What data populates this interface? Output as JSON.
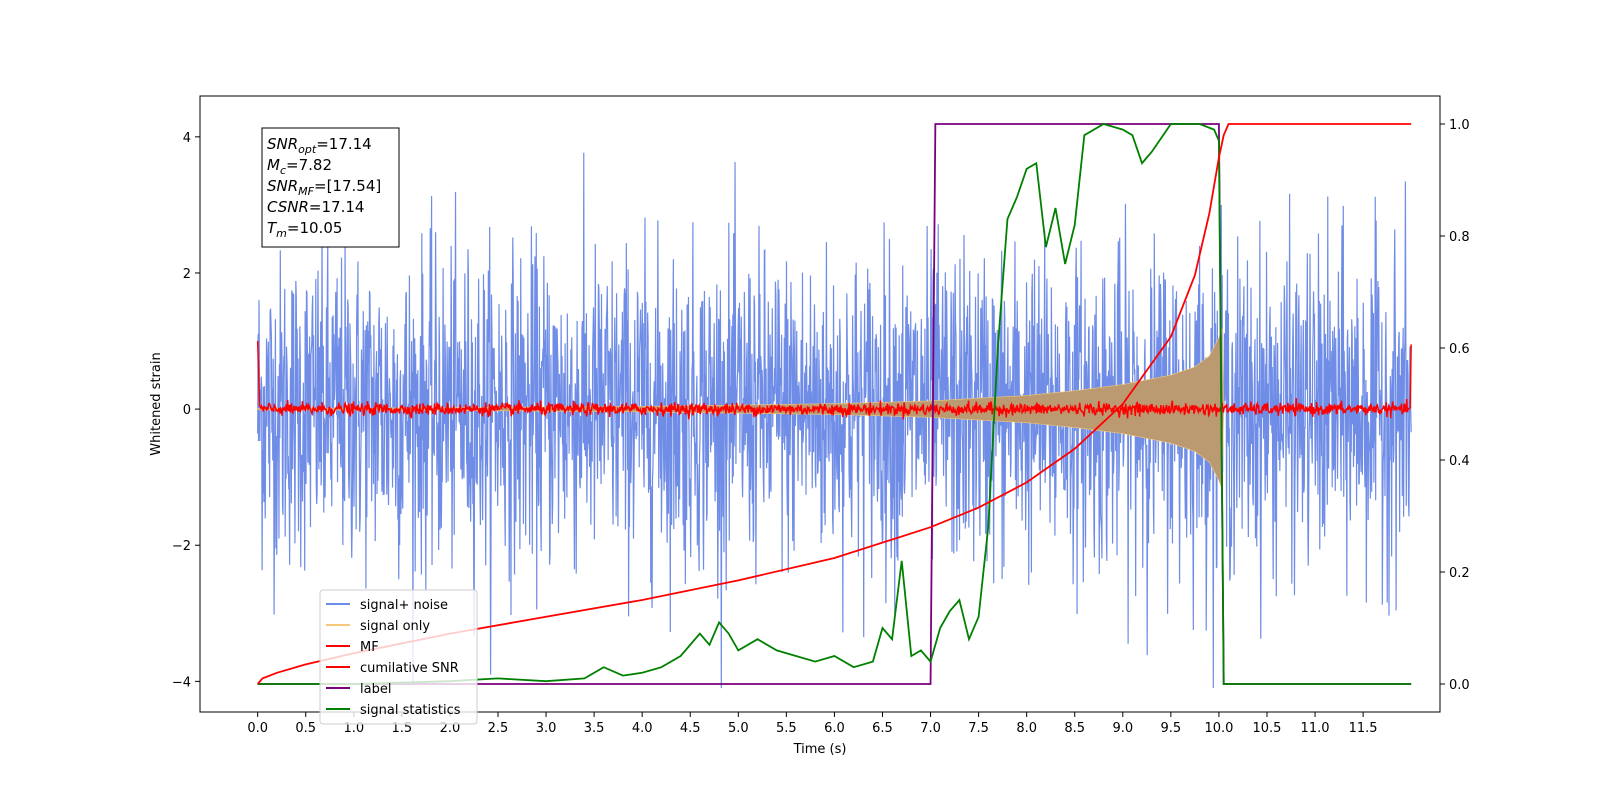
{
  "chart_data": {
    "type": "line",
    "xlabel": "Time (s)",
    "ylabel": "Whitened strain",
    "x_ticks": [
      "0.0",
      "0.5",
      "1.0",
      "1.5",
      "2.0",
      "2.5",
      "3.0",
      "3.5",
      "4.0",
      "4.5",
      "5.0",
      "5.5",
      "6.0",
      "6.5",
      "7.0",
      "7.5",
      "8.0",
      "8.5",
      "9.0",
      "9.5",
      "10.0",
      "10.5",
      "11.0",
      "11.5"
    ],
    "y_left_ticks": [
      "4",
      "2",
      "0",
      "−2",
      "−4"
    ],
    "y_right_ticks": [
      "1.0",
      "0.8",
      "0.6",
      "0.4",
      "0.2",
      "0.0"
    ],
    "xlim": [
      -0.6,
      12.3
    ],
    "ylim_left": [
      -4.45,
      4.6
    ],
    "ylim_right": [
      -0.05,
      1.05
    ],
    "grid": false,
    "legend_position": "lower-left",
    "annotation": {
      "lines": [
        {
          "base": "SNR",
          "sub": "opt",
          "value": "=17.14"
        },
        {
          "base": "M",
          "sub": "c",
          "value": "=7.82"
        },
        {
          "base": "SNR",
          "sub": "MF",
          "value": "=[17.54]"
        },
        {
          "base": "CSNR",
          "sub": "",
          "value": "=17.14"
        },
        {
          "base": "T",
          "sub": "m",
          "value": "=10.05"
        }
      ]
    },
    "series": [
      {
        "name": "signal+ noise",
        "color": "#6f8de6",
        "axis": "left",
        "description": "white noise, std approx 1.1, from 0.0 to 12.0 s, peaks up to about 4.1 and down to about -4.1"
      },
      {
        "name": "signal only",
        "color": "#f5c87a",
        "axis": "left",
        "envelope": {
          "t": [
            0,
            2,
            4,
            6,
            7,
            8,
            8.5,
            9,
            9.5,
            9.75,
            9.9,
            10.0,
            10.05
          ],
          "amp": [
            0.01,
            0.02,
            0.04,
            0.08,
            0.12,
            0.2,
            0.27,
            0.36,
            0.5,
            0.62,
            0.78,
            1.05,
            1.25
          ]
        }
      },
      {
        "name": "MF",
        "color": "#ff0000",
        "axis": "left",
        "description": "noisy trace around 0, amplitude approx 0.1, edge spike to 1.0 at 0.0 s and 12.0 s"
      },
      {
        "name": "cumilative SNR",
        "color": "#ff0000",
        "axis": "right",
        "x": [
          0.0,
          0.05,
          0.2,
          0.5,
          1.0,
          2.0,
          3.0,
          4.0,
          5.0,
          6.0,
          7.0,
          7.5,
          8.0,
          8.5,
          9.0,
          9.5,
          9.75,
          9.9,
          10.0,
          10.05,
          10.1,
          12.0
        ],
        "y": [
          0.0,
          0.01,
          0.02,
          0.035,
          0.055,
          0.09,
          0.12,
          0.15,
          0.185,
          0.225,
          0.28,
          0.315,
          0.36,
          0.42,
          0.5,
          0.62,
          0.73,
          0.84,
          0.94,
          0.98,
          1.0,
          1.0
        ]
      },
      {
        "name": "label",
        "color": "#7b007b",
        "axis": "right",
        "x": [
          0.0,
          7.0,
          7.05,
          10.0,
          10.05,
          12.0
        ],
        "y": [
          0.0,
          0.0,
          1.0,
          1.0,
          0.0,
          0.0
        ]
      },
      {
        "name": "signal statistics",
        "color": "#008000",
        "axis": "right",
        "x": [
          0.0,
          1.0,
          2.0,
          2.5,
          3.0,
          3.4,
          3.6,
          3.8,
          4.0,
          4.2,
          4.4,
          4.6,
          4.7,
          4.8,
          4.9,
          5.0,
          5.2,
          5.4,
          5.6,
          5.8,
          6.0,
          6.2,
          6.4,
          6.5,
          6.6,
          6.7,
          6.8,
          6.9,
          7.0,
          7.1,
          7.2,
          7.3,
          7.4,
          7.5,
          7.6,
          7.7,
          7.8,
          7.9,
          8.0,
          8.1,
          8.2,
          8.3,
          8.4,
          8.5,
          8.6,
          8.8,
          9.0,
          9.1,
          9.2,
          9.3,
          9.5,
          9.8,
          9.95,
          10.0,
          10.05,
          10.1,
          11.0,
          12.0
        ],
        "y": [
          0.0,
          0.0,
          0.005,
          0.01,
          0.005,
          0.01,
          0.03,
          0.015,
          0.02,
          0.03,
          0.05,
          0.09,
          0.07,
          0.11,
          0.09,
          0.06,
          0.08,
          0.06,
          0.05,
          0.04,
          0.05,
          0.03,
          0.04,
          0.1,
          0.08,
          0.22,
          0.05,
          0.06,
          0.04,
          0.1,
          0.13,
          0.15,
          0.08,
          0.12,
          0.28,
          0.6,
          0.83,
          0.87,
          0.92,
          0.93,
          0.78,
          0.85,
          0.75,
          0.82,
          0.98,
          1.0,
          0.99,
          0.98,
          0.93,
          0.95,
          1.0,
          1.0,
          0.99,
          0.97,
          0.0,
          0.0,
          0.0,
          0.0
        ]
      }
    ]
  }
}
